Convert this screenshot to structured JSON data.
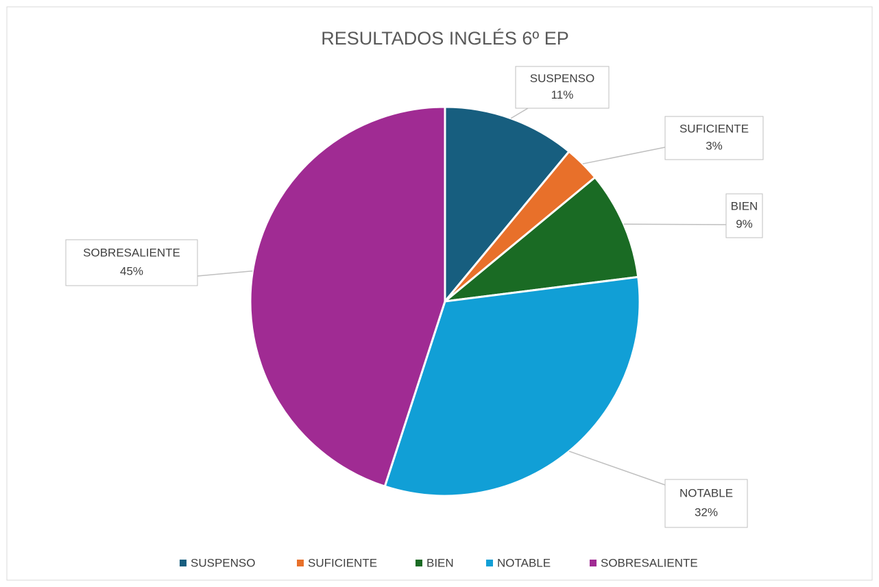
{
  "chart_data": {
    "type": "pie",
    "title": "RESULTADOS INGLÉS 6º EP",
    "categories": [
      "SUSPENSO",
      "SUFICIENTE",
      "BIEN",
      "NOTABLE",
      "SOBRESALIENTE"
    ],
    "values": [
      11,
      3,
      9,
      32,
      45
    ],
    "value_labels": [
      "11%",
      "3%",
      "9%",
      "32%",
      "45%"
    ],
    "colors": [
      "#175e7f",
      "#e8702a",
      "#1a6b24",
      "#119fd6",
      "#a02b93"
    ],
    "legend": "bottom"
  }
}
